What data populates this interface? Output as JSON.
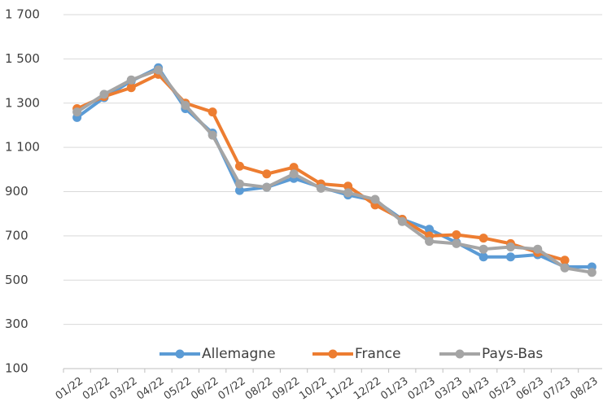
{
  "chart_data": {
    "type": "line",
    "categories": [
      "01/22",
      "02/22",
      "03/22",
      "04/22",
      "05/22",
      "06/22",
      "07/22",
      "08/22",
      "09/22",
      "10/22",
      "11/22",
      "12/22",
      "01/23",
      "02/23",
      "03/23",
      "04/23",
      "05/23",
      "06/23",
      "07/23",
      "08/23"
    ],
    "series": [
      {
        "name": "Allemagne",
        "color": "#5b9bd5",
        "values": [
          1235,
          1325,
          1400,
          1460,
          1275,
          1165,
          905,
          920,
          960,
          920,
          885,
          860,
          775,
          730,
          670,
          605,
          605,
          615,
          560,
          560
        ]
      },
      {
        "name": "France",
        "color": "#ed7d31",
        "values": [
          1275,
          1330,
          1370,
          1430,
          1300,
          1260,
          1015,
          980,
          1010,
          935,
          925,
          840,
          775,
          700,
          705,
          690,
          665,
          625,
          590,
          null
        ]
      },
      {
        "name": "Pays-Bas",
        "color": "#a5a5a5",
        "values": [
          1260,
          1340,
          1405,
          1450,
          1290,
          1155,
          935,
          920,
          980,
          915,
          895,
          865,
          765,
          675,
          665,
          640,
          650,
          640,
          555,
          535
        ]
      }
    ],
    "ylim": [
      100,
      1700
    ],
    "yticks": [
      100,
      300,
      500,
      700,
      900,
      {
        "value": 1100,
        "label": "1 100"
      },
      {
        "value": 1300,
        "label": "1 300"
      },
      {
        "value": 1500,
        "label": "1 500"
      },
      {
        "value": 1700,
        "label": "1 700"
      }
    ],
    "grid": true,
    "legend": "bottom"
  }
}
